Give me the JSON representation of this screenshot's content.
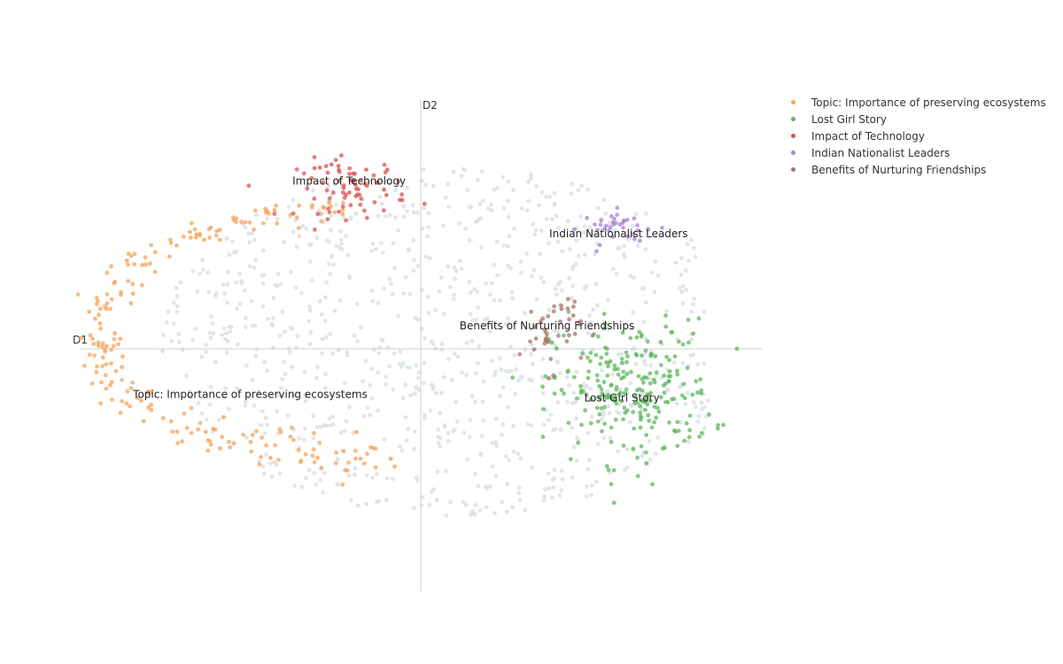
{
  "chart_data": {
    "type": "scatter",
    "title": "",
    "xlabel": "D1",
    "ylabel": "D2",
    "xlim": [
      -10,
      10
    ],
    "ylim": [
      -7.5,
      7.5
    ],
    "grid": false,
    "legend_position": "top-right",
    "background_color": "#dde3e6",
    "series": [
      {
        "name": "Topic: Importance of preserving ecosystems",
        "color": "#f5a35a",
        "label": "Topic: Importance of preserving ecosystems",
        "label_at": [
          -5.0,
          -1.5
        ],
        "points": "arc",
        "center": [
          -1.5,
          0.9
        ],
        "rx": 8.0,
        "ry": 3.8,
        "arc_deg": [
          95,
          275
        ],
        "count": 220
      },
      {
        "name": "Lost Girl Story",
        "color": "#5cb85c",
        "label": "Lost Girl Story",
        "label_at": [
          5.9,
          -1.6
        ],
        "points": "blob",
        "center": [
          6.2,
          -1.3
        ],
        "rx": 2.6,
        "ry": 2.4,
        "count": 240
      },
      {
        "name": "Impact of Technology",
        "color": "#d9534f",
        "label": "Impact of Technology",
        "label_at": [
          -2.1,
          5.0
        ],
        "points": "blob",
        "center": [
          -2.0,
          4.9
        ],
        "rx": 1.8,
        "ry": 1.0,
        "count": 75
      },
      {
        "name": "Indian Nationalist Leaders",
        "color": "#a784c9",
        "label": "Indian Nationalist Leaders",
        "label_at": [
          5.8,
          3.4
        ],
        "points": "blob",
        "center": [
          5.9,
          3.7
        ],
        "rx": 1.3,
        "ry": 0.55,
        "count": 35
      },
      {
        "name": "Benefits of Nurturing Friendships",
        "color": "#a9746e",
        "label": "Benefits of Nurturing Friendships",
        "label_at": [
          3.7,
          0.6
        ],
        "points": "blob",
        "center": [
          3.8,
          0.6
        ],
        "rx": 1.0,
        "ry": 1.4,
        "count": 40
      }
    ]
  }
}
